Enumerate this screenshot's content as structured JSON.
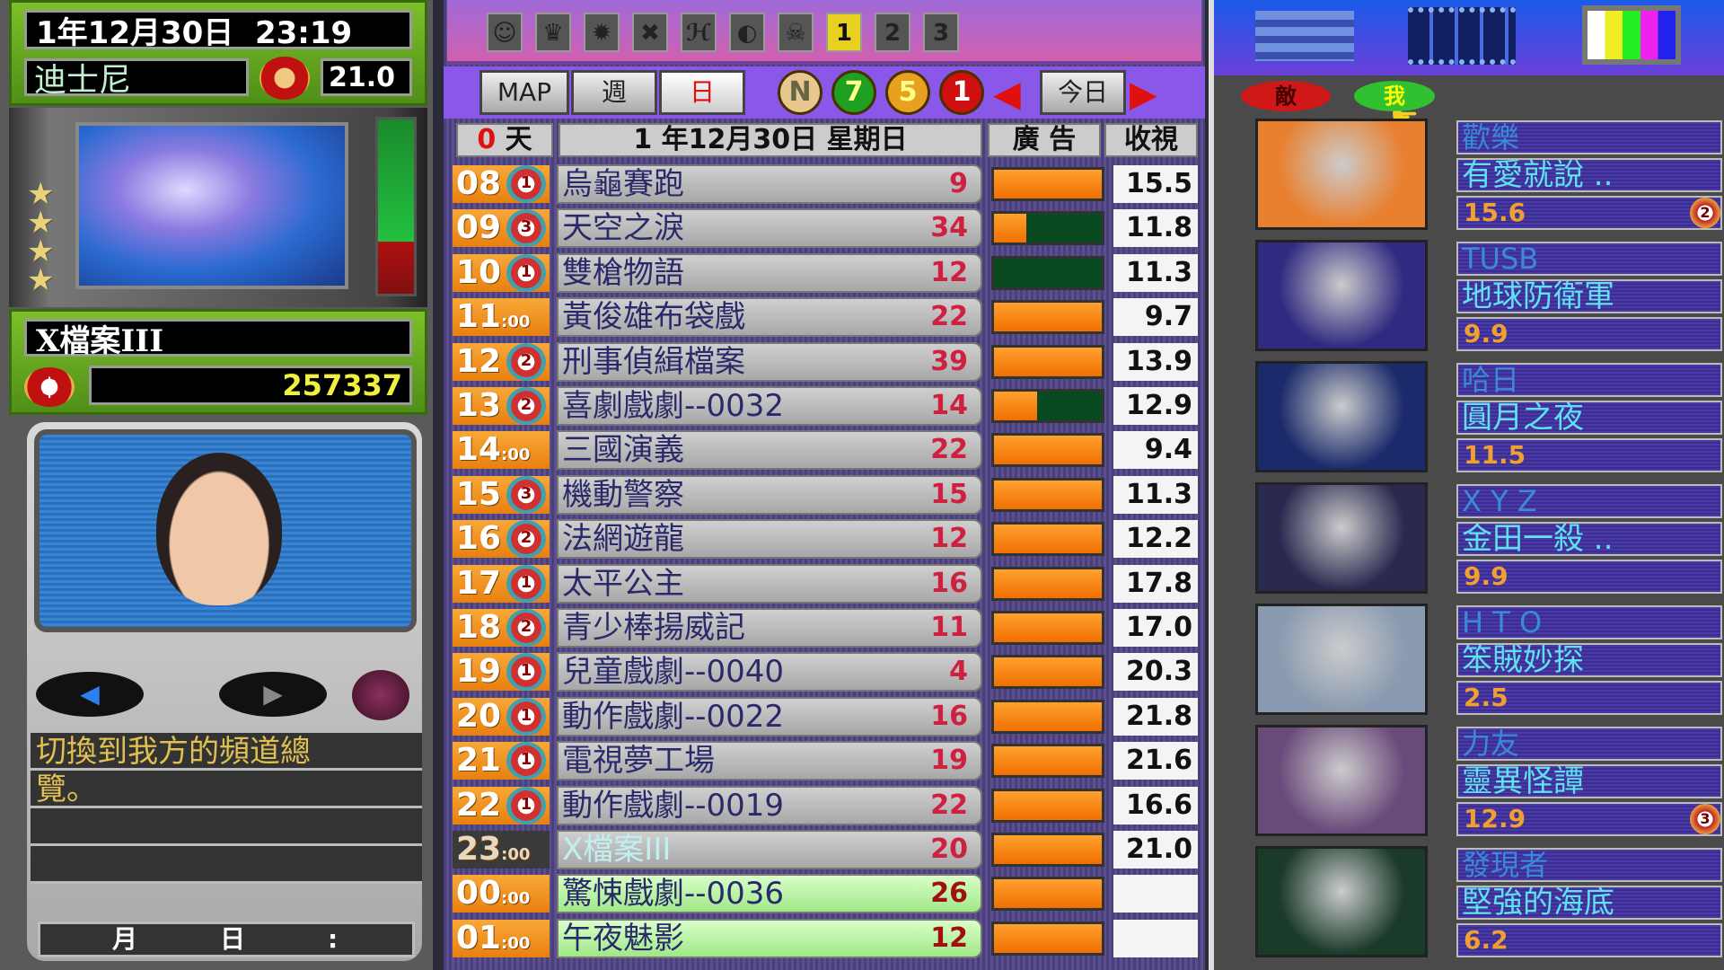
{
  "status": {
    "date_time": "1年12月30日  23:19",
    "channel_name": "迪士尼",
    "channel_rating": "21.0",
    "current_show": "X檔案III",
    "money": "257337",
    "stars": 4
  },
  "message": {
    "lines": [
      "切換到我方的頻道總",
      "覽。",
      "",
      ""
    ],
    "footer_month": "月",
    "footer_day": "日",
    "footer_colon": ":"
  },
  "toolbar": {
    "icons": [
      "face-icon",
      "building-icon",
      "sun-icon",
      "cross-icon",
      "signature-icon",
      "globe-icon",
      "crown-face-icon"
    ],
    "numbers": [
      "1",
      "2",
      "3"
    ],
    "selected": "1"
  },
  "view": {
    "map": "MAP",
    "week": "週",
    "day": "日",
    "coins": [
      "N",
      "7",
      "5",
      "1"
    ],
    "today": "今日"
  },
  "header": {
    "days": "0",
    "days_unit": "天",
    "date": "1 年12月30日 星期日",
    "ad": "廣 告",
    "rating": "收視"
  },
  "schedule": [
    {
      "hour": "08",
      "rank": "1",
      "title": "烏龜賽跑",
      "count": "9",
      "ad_fill": 1,
      "rating": "15.5"
    },
    {
      "hour": "09",
      "rank": "3",
      "title": "天空之淚",
      "count": "34",
      "ad_fill": 0.3,
      "rating": "11.8"
    },
    {
      "hour": "10",
      "rank": "1",
      "title": "雙槍物語",
      "count": "12",
      "ad_fill": 0,
      "rating": "11.3"
    },
    {
      "hour": "11",
      "minutes": "00",
      "title": "黃俊雄布袋戲",
      "count": "22",
      "ad_fill": 1,
      "rating": "9.7"
    },
    {
      "hour": "12",
      "rank": "2",
      "title": "刑事偵緝檔案",
      "count": "39",
      "ad_fill": 1,
      "rating": "13.9"
    },
    {
      "hour": "13",
      "rank": "2",
      "title": "喜劇戲劇--0032",
      "count": "14",
      "ad_fill": 0.4,
      "rating": "12.9"
    },
    {
      "hour": "14",
      "minutes": "00",
      "title": "三國演義",
      "count": "22",
      "ad_fill": 1,
      "rating": "9.4"
    },
    {
      "hour": "15",
      "rank": "3",
      "title": "機動警察",
      "count": "15",
      "ad_fill": 1,
      "rating": "11.3"
    },
    {
      "hour": "16",
      "rank": "2",
      "title": "法網遊龍",
      "count": "12",
      "ad_fill": 1,
      "rating": "12.2"
    },
    {
      "hour": "17",
      "rank": "1",
      "title": "太平公主",
      "count": "16",
      "ad_fill": 1,
      "rating": "17.8"
    },
    {
      "hour": "18",
      "rank": "2",
      "title": "青少棒揚威記",
      "count": "11",
      "ad_fill": 1,
      "rating": "17.0"
    },
    {
      "hour": "19",
      "rank": "1",
      "title": "兒童戲劇--0040",
      "count": "4",
      "ad_fill": 1,
      "rating": "20.3"
    },
    {
      "hour": "20",
      "rank": "1",
      "title": "動作戲劇--0022",
      "count": "16",
      "ad_fill": 1,
      "rating": "21.8"
    },
    {
      "hour": "21",
      "rank": "1",
      "title": "電視夢工場",
      "count": "19",
      "ad_fill": 1,
      "rating": "21.6"
    },
    {
      "hour": "22",
      "rank": "1",
      "title": "動作戲劇--0019",
      "count": "22",
      "ad_fill": 1,
      "rating": "16.6"
    },
    {
      "hour": "23",
      "minutes": "00",
      "title": "X檔案III",
      "count": "20",
      "ad_fill": 1,
      "rating": "21.0",
      "state": "current"
    },
    {
      "hour": "00",
      "minutes": "00",
      "title": "驚悚戲劇--0036",
      "count": "26",
      "ad_fill": 1,
      "rating": "",
      "state": "future"
    },
    {
      "hour": "01",
      "minutes": "00",
      "title": "午夜魅影",
      "count": "12",
      "ad_fill": 1,
      "rating": "",
      "state": "future"
    }
  ],
  "rivals": {
    "enemy": "敵",
    "mine": "我",
    "channels": [
      {
        "channel": "歡樂",
        "show": "有愛就說 ..",
        "rating": "15.6",
        "rank": "2",
        "thumb": "#e88030"
      },
      {
        "channel": "TUSB",
        "show": "地球防衛軍",
        "rating": "9.9",
        "thumb": "#302a80"
      },
      {
        "channel": "哈日",
        "show": "圓月之夜",
        "rating": "11.5",
        "thumb": "#1a2a6a"
      },
      {
        "channel": "X Y Z",
        "show": "金田一殺 ..",
        "rating": "9.9",
        "thumb": "#2a2a50"
      },
      {
        "channel": "H T O",
        "show": "笨賊妙探",
        "rating": "2.5",
        "thumb": "#8a9ab0"
      },
      {
        "channel": "力友",
        "show": "靈異怪譚",
        "rating": "12.9",
        "rank": "3",
        "thumb": "#6a4a7a"
      },
      {
        "channel": "發現者",
        "show": "堅強的海底",
        "rating": "6.2",
        "thumb": "#1a3a2a"
      }
    ]
  },
  "colors": {
    "accent_orange": "#f08a20",
    "ad_empty": "#0a4a20",
    "panel_green": "#6ab022"
  }
}
